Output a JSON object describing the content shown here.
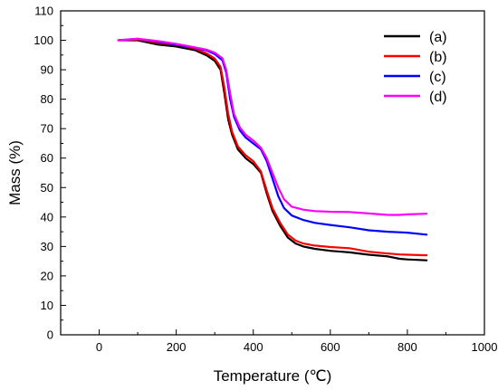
{
  "chart_data": {
    "type": "line",
    "xlabel": "Temperature (℃)",
    "ylabel": "Mass (%)",
    "xlim": [
      -100,
      1000
    ],
    "ylim": [
      0,
      110
    ],
    "xticks": [
      0,
      200,
      400,
      600,
      800,
      1000
    ],
    "yticks": [
      0,
      10,
      20,
      30,
      40,
      50,
      60,
      70,
      80,
      90,
      100,
      110
    ],
    "xtick_labels": [
      "0",
      "200",
      "400",
      "600",
      "800",
      "1000"
    ],
    "ytick_labels": [
      "0",
      "10",
      "20",
      "30",
      "40",
      "50",
      "60",
      "70",
      "80",
      "90",
      "100",
      "110"
    ],
    "grid": false,
    "legend_position": "top-right",
    "series": [
      {
        "name": "(a)",
        "color": "#000000",
        "x": [
          50,
          100,
          150,
          200,
          250,
          280,
          300,
          315,
          325,
          335,
          345,
          360,
          380,
          400,
          420,
          435,
          450,
          470,
          490,
          510,
          530,
          560,
          600,
          650,
          700,
          750,
          780,
          800,
          850
        ],
        "y": [
          100,
          100,
          98.6,
          97.9,
          96.6,
          94.8,
          93,
          90,
          82,
          73,
          68,
          63,
          60,
          58,
          55,
          48,
          42,
          37,
          33,
          31,
          30,
          29.2,
          28.5,
          28,
          27.2,
          26.6,
          25.8,
          25.6,
          25.3
        ]
      },
      {
        "name": "(b)",
        "color": "#ff0000",
        "x": [
          50,
          100,
          150,
          200,
          250,
          280,
          300,
          315,
          325,
          335,
          345,
          360,
          380,
          400,
          420,
          435,
          450,
          470,
          490,
          510,
          530,
          560,
          600,
          650,
          700,
          750,
          780,
          800,
          850
        ],
        "y": [
          100,
          100.3,
          99.2,
          98.5,
          97.2,
          95.5,
          93.8,
          91,
          84,
          75,
          69,
          64,
          61,
          59,
          55.5,
          49,
          43,
          38,
          34,
          32,
          31,
          30.3,
          29.8,
          29.4,
          28.2,
          27.6,
          27.3,
          27.2,
          27
        ]
      },
      {
        "name": "(c)",
        "color": "#0000ff",
        "x": [
          50,
          100,
          150,
          200,
          250,
          280,
          300,
          320,
          330,
          340,
          350,
          365,
          380,
          400,
          420,
          435,
          450,
          465,
          480,
          500,
          530,
          560,
          600,
          650,
          700,
          750,
          780,
          800,
          850
        ],
        "y": [
          100,
          100.5,
          99.6,
          98.5,
          97.5,
          96.5,
          95.3,
          93.2,
          89,
          80,
          74,
          69.5,
          67,
          65,
          63,
          59,
          53,
          47,
          43,
          40.5,
          39,
          38,
          37.3,
          36.5,
          35.5,
          35,
          34.8,
          34.7,
          34
        ]
      },
      {
        "name": "(d)",
        "color": "#ff00ff",
        "x": [
          50,
          100,
          150,
          200,
          250,
          280,
          300,
          320,
          330,
          340,
          350,
          365,
          380,
          400,
          420,
          435,
          450,
          465,
          480,
          500,
          530,
          560,
          600,
          650,
          700,
          750,
          780,
          800,
          850
        ],
        "y": [
          100,
          100.5,
          99.8,
          98.8,
          97.6,
          96.8,
          95.8,
          93.9,
          90,
          82,
          75,
          70.5,
          68,
          66,
          63.5,
          60,
          55,
          50,
          46,
          43.5,
          42.5,
          42,
          41.8,
          41.7,
          41.2,
          40.7,
          40.7,
          40.9,
          41.1
        ]
      }
    ]
  }
}
